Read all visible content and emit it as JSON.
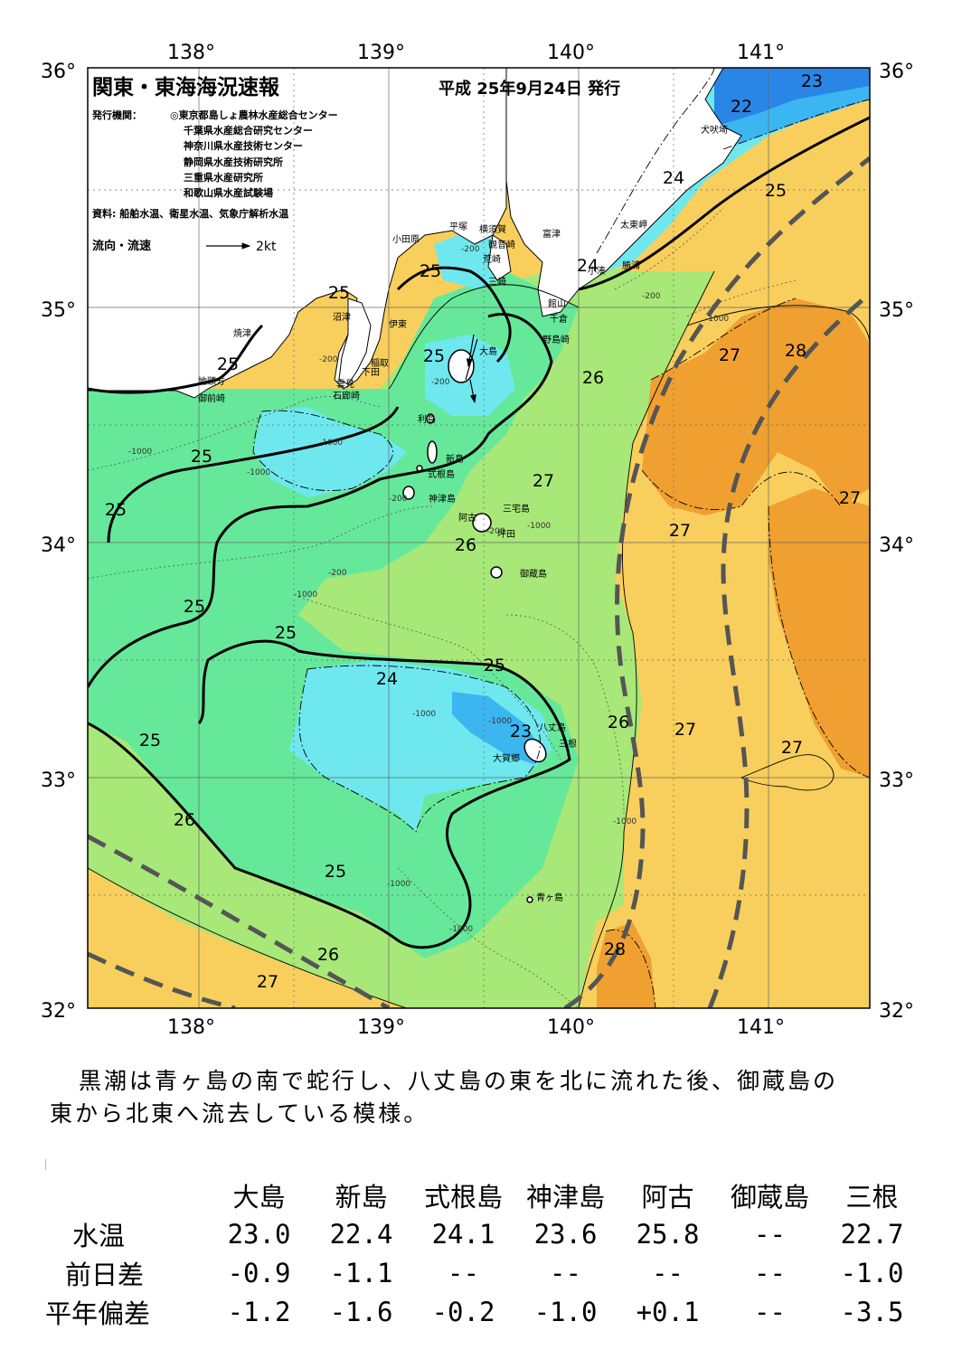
{
  "map": {
    "title": "関東・東海海況速報",
    "issue_date": "平成 25年9月24日 発行",
    "issuer_label": "発行機関：",
    "issuers": [
      "◎東京都島しょ農林水産総合センター",
      "千葉県水産総合研究センター",
      "神奈川県水産技術センター",
      "静岡県水産技術研究所",
      "三重県水産研究所",
      "和歌山県水産試験場"
    ],
    "sources": "資料: 船舶水温、衛星水温、気象庁解析水温",
    "legend_label": "流向・流速",
    "legend_scale": "2kt",
    "lon_labels": [
      "138°",
      "139°",
      "140°",
      "141°"
    ],
    "lat_labels": [
      "36°",
      "35°",
      "34°",
      "33°",
      "32°"
    ],
    "colors": {
      "water_22": "#2a86e6",
      "water_23": "#3cb6f0",
      "water_24": "#6ee8ee",
      "water_25": "#66e89a",
      "water_26": "#a8e878",
      "water_27": "#f8cf5c",
      "water_28": "#f0a030",
      "land": "#ffffff",
      "kuroshio_axis": "#555555"
    },
    "isotherm_labels": [
      "23",
      "22",
      "24",
      "25",
      "24",
      "25",
      "25",
      "25",
      "27",
      "28",
      "26",
      "25",
      "25",
      "27",
      "27",
      "25",
      "26",
      "27",
      "25",
      "24",
      "25",
      "23",
      "26",
      "27",
      "27",
      "25",
      "26",
      "25",
      "26",
      "27",
      "28"
    ],
    "depth_labels": [
      "-200",
      "-200",
      "-200",
      "-1000",
      "-200",
      "-1000",
      "-1000",
      "-200",
      "-1000",
      "-200",
      "-1000",
      "-1000",
      "-1000",
      "-1000",
      "-1000",
      "-1000",
      "-1000",
      "-200"
    ],
    "places": [
      "犬吠埼",
      "太東岬",
      "勝浦",
      "富津",
      "横須賀",
      "観音崎",
      "平塚",
      "小田原",
      "荒崎",
      "三崎",
      "館山",
      "千倉",
      "野島崎",
      "伊東",
      "沼津",
      "焼津",
      "稲取",
      "下田",
      "雲見",
      "石廊崎",
      "地頭方",
      "御前崎",
      "大島",
      "利島",
      "新島",
      "式根島",
      "神津島",
      "三宅島",
      "阿古",
      "坪田",
      "御蔵島",
      "八丈島",
      "三根",
      "大賀郷",
      "青ヶ島",
      "小湊"
    ]
  },
  "summary": [
    "黒潮は青ヶ島の南で蛇行し、八丈島の東を北に流れた後、御蔵島の",
    "東から北東へ流去している模様。"
  ],
  "table": {
    "columns": [
      "大島",
      "新島",
      "式根島",
      "神津島",
      "阿古",
      "御蔵島",
      "三根"
    ],
    "rows": [
      {
        "label": "水温",
        "values": [
          "23.0",
          "22.4",
          "24.1",
          "23.6",
          "25.8",
          "--",
          "22.7"
        ]
      },
      {
        "label": "前日差",
        "values": [
          "-0.9",
          "-1.1",
          "--",
          "--",
          "--",
          "--",
          "-1.0"
        ]
      },
      {
        "label": "平年偏差",
        "values": [
          "-1.2",
          "-1.6",
          "-0.2",
          "-1.0",
          "+0.1",
          "--",
          "-3.5"
        ]
      }
    ]
  }
}
